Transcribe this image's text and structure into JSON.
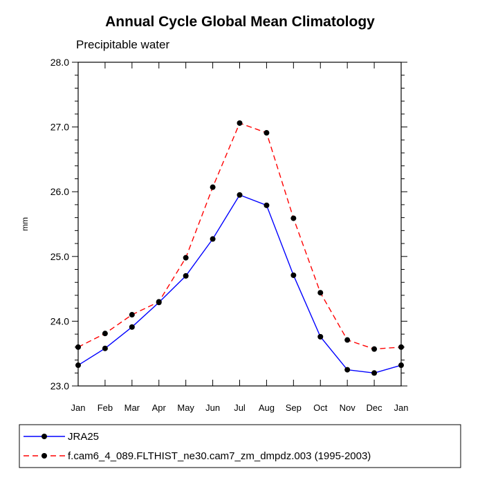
{
  "chart_data": {
    "type": "line",
    "title": "Annual Cycle Global Mean Climatology",
    "subtitle": "Precipitable water",
    "xlabel": "",
    "ylabel": "mm",
    "categories": [
      "Jan",
      "Feb",
      "Mar",
      "Apr",
      "May",
      "Jun",
      "Jul",
      "Aug",
      "Sep",
      "Oct",
      "Nov",
      "Dec",
      "Jan"
    ],
    "yticks": [
      "23.0",
      "24.0",
      "25.0",
      "26.0",
      "27.0",
      "28.0"
    ],
    "ylim": [
      23.0,
      28.0
    ],
    "grid": false,
    "legend_position": "bottom",
    "series": [
      {
        "name": "JRA25",
        "color": "#0000ff",
        "line_style": "solid",
        "values": [
          23.32,
          23.58,
          23.91,
          24.29,
          24.7,
          25.27,
          25.95,
          25.79,
          24.71,
          23.76,
          23.25,
          23.2,
          23.32
        ]
      },
      {
        "name": "f.cam6_4_089.FLTHIST_ne30.cam7_zm_dmpdz.003 (1995-2003)",
        "color": "#ff0000",
        "line_style": "dashed",
        "values": [
          23.6,
          23.81,
          24.1,
          24.3,
          24.98,
          26.07,
          27.06,
          26.91,
          25.59,
          24.44,
          23.71,
          23.57,
          23.6
        ]
      }
    ]
  }
}
